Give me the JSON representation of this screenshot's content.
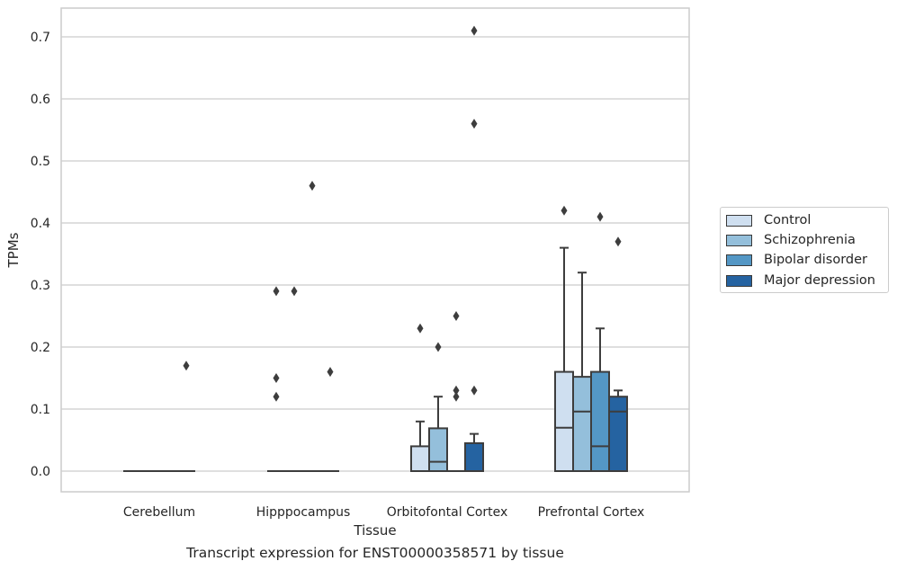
{
  "chart_data": {
    "type": "box",
    "caption": "Transcript expression for ENST00000358571 by tissue",
    "xlabel": "Tissue",
    "ylabel": "TPMs",
    "ylim": [
      -0.035,
      0.745
    ],
    "yticks": [
      "0.0",
      "0.1",
      "0.2",
      "0.3",
      "0.4",
      "0.5",
      "0.6",
      "0.7"
    ],
    "ytick_values": [
      0,
      0.1,
      0.2,
      0.3,
      0.4,
      0.5,
      0.6,
      0.7
    ],
    "grid": true,
    "legend_position": "right",
    "categories": [
      "Cerebellum",
      "Hipppocampus",
      "Orbitofontal Cortex",
      "Prefrontal Cortex"
    ],
    "series": [
      {
        "name": "Control",
        "color": "#cfdff0",
        "boxes": [
          {
            "q1": 0,
            "median": 0,
            "q3": 0,
            "whisker_low": 0,
            "whisker_high": 0,
            "outliers": []
          },
          {
            "q1": 0,
            "median": 0,
            "q3": 0,
            "whisker_low": 0,
            "whisker_high": 0,
            "outliers": [
              0.29,
              0.15,
              0.12
            ]
          },
          {
            "q1": 0,
            "median": 0,
            "q3": 0.04,
            "whisker_low": 0,
            "whisker_high": 0.08,
            "outliers": [
              0.23
            ]
          },
          {
            "q1": 0,
            "median": 0.07,
            "q3": 0.16,
            "whisker_low": 0,
            "whisker_high": 0.36,
            "outliers": [
              0.42
            ]
          }
        ]
      },
      {
        "name": "Schizophrenia",
        "color": "#94bfdb",
        "boxes": [
          {
            "q1": 0,
            "median": 0,
            "q3": 0,
            "whisker_low": 0,
            "whisker_high": 0,
            "outliers": []
          },
          {
            "q1": 0,
            "median": 0,
            "q3": 0,
            "whisker_low": 0,
            "whisker_high": 0,
            "outliers": [
              0.29
            ]
          },
          {
            "q1": 0,
            "median": 0.015,
            "q3": 0.069,
            "whisker_low": 0,
            "whisker_high": 0.12,
            "outliers": [
              0.2
            ]
          },
          {
            "q1": 0,
            "median": 0.096,
            "q3": 0.152,
            "whisker_low": 0,
            "whisker_high": 0.32,
            "outliers": []
          }
        ]
      },
      {
        "name": "Bipolar disorder",
        "color": "#5497c5",
        "boxes": [
          {
            "q1": 0,
            "median": 0,
            "q3": 0,
            "whisker_low": 0,
            "whisker_high": 0,
            "outliers": []
          },
          {
            "q1": 0,
            "median": 0,
            "q3": 0,
            "whisker_low": 0,
            "whisker_high": 0,
            "outliers": [
              0.46
            ]
          },
          {
            "q1": 0,
            "median": 0,
            "q3": 0,
            "whisker_low": 0,
            "whisker_high": 0,
            "outliers": [
              0.25,
              0.13,
              0.12
            ]
          },
          {
            "q1": 0,
            "median": 0.04,
            "q3": 0.16,
            "whisker_low": 0,
            "whisker_high": 0.23,
            "outliers": [
              0.41
            ]
          }
        ]
      },
      {
        "name": "Major depression",
        "color": "#2563a1",
        "boxes": [
          {
            "q1": 0,
            "median": 0,
            "q3": 0,
            "whisker_low": 0,
            "whisker_high": 0,
            "outliers": [
              0.17
            ]
          },
          {
            "q1": 0,
            "median": 0,
            "q3": 0,
            "whisker_low": 0,
            "whisker_high": 0,
            "outliers": [
              0.16
            ]
          },
          {
            "q1": 0,
            "median": 0,
            "q3": 0.045,
            "whisker_low": 0,
            "whisker_high": 0.06,
            "outliers": [
              0.71,
              0.56,
              0.13
            ]
          },
          {
            "q1": 0,
            "median": 0.096,
            "q3": 0.12,
            "whisker_low": 0,
            "whisker_high": 0.13,
            "outliers": [
              0.37
            ]
          }
        ]
      }
    ]
  }
}
